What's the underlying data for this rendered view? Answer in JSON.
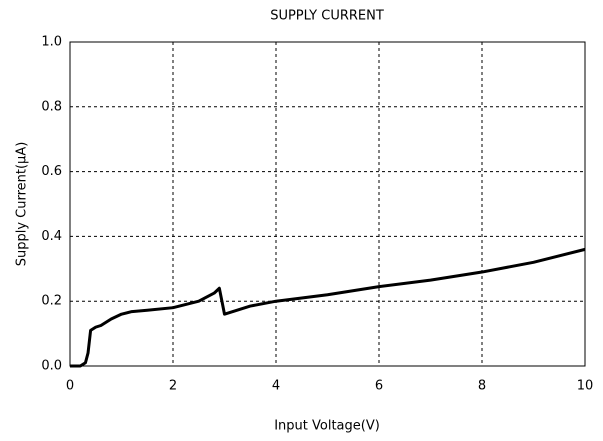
{
  "chart_data": {
    "type": "line",
    "title": "SUPPLY CURRENT",
    "x_label": "Input Voltage(V)",
    "y_label": "Supply Current(μA)",
    "x": [
      0,
      0.2,
      0.3,
      0.35,
      0.4,
      0.5,
      0.6,
      0.8,
      1.0,
      1.2,
      1.5,
      2.0,
      2.5,
      2.8,
      2.9,
      2.95,
      3.0,
      3.2,
      3.5,
      4,
      5,
      6,
      7,
      8,
      9,
      10
    ],
    "series": [
      {
        "name": "Supply Current",
        "color": "#000000",
        "values": [
          0.0,
          0.0,
          0.01,
          0.04,
          0.11,
          0.12,
          0.125,
          0.145,
          0.16,
          0.168,
          0.172,
          0.18,
          0.2,
          0.225,
          0.24,
          0.2,
          0.16,
          0.17,
          0.185,
          0.2,
          0.22,
          0.245,
          0.265,
          0.29,
          0.32,
          0.36
        ]
      }
    ],
    "xlim": [
      0,
      10
    ],
    "xticks": [
      0,
      2,
      4,
      6,
      8,
      10
    ],
    "ylim": [
      0,
      1
    ],
    "yticks": [
      {
        "value": 0,
        "label": "0.0"
      },
      0.2,
      0.4,
      0.6,
      0.8,
      {
        "value": 1,
        "label": "1.0"
      }
    ],
    "grid": true
  }
}
